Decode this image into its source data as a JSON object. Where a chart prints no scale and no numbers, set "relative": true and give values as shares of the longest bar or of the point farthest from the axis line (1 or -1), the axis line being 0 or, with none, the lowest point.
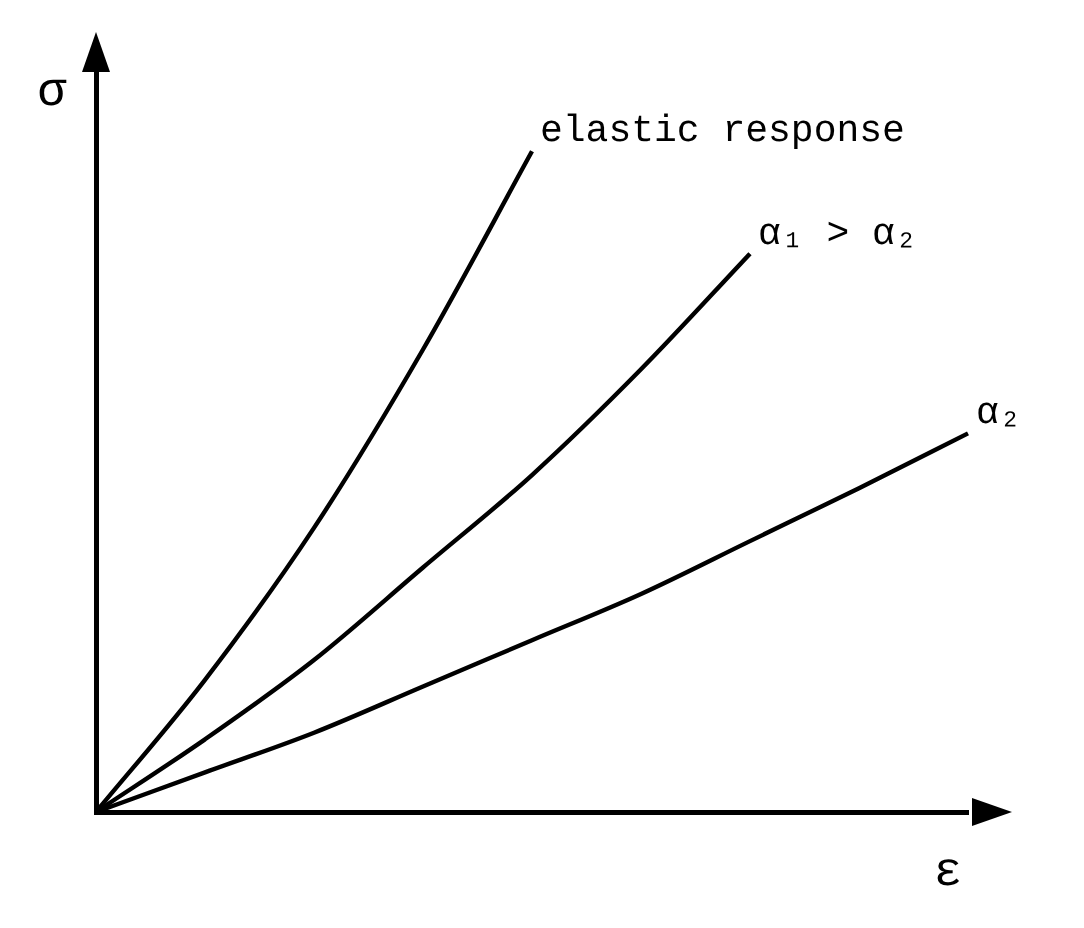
{
  "chart_data": {
    "type": "line",
    "relative": true,
    "xlabel": "ε",
    "ylabel": "σ",
    "legend": false,
    "grid": false,
    "marker": "none",
    "line_style": "solid",
    "tick_labels": false,
    "categories": [
      null,
      null,
      null,
      null,
      null,
      null,
      null,
      null,
      null
    ],
    "series": [
      {
        "name": "elastic response",
        "color": "#000000",
        "values": [
          0,
          0.2,
          0.43,
          0.7,
          1,
          null,
          null,
          null,
          null
        ]
      },
      {
        "name": "α₁ > α₂",
        "color": "#000000",
        "values": [
          0,
          0.11,
          0.23,
          0.37,
          0.51,
          0.67,
          0.845,
          null,
          null
        ]
      },
      {
        "name": "α₂",
        "color": "#000000",
        "values": [
          0,
          0.06,
          0.12,
          0.19,
          0.26,
          0.33,
          0.41,
          0.49,
          0.573
        ]
      }
    ]
  }
}
